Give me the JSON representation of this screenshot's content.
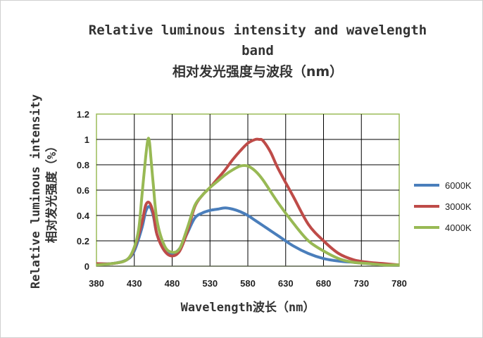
{
  "chart_data": {
    "type": "line",
    "title": "Relative luminous intensity and wavelength band",
    "title_line1": "Relative luminous intensity and wavelength",
    "title_line2": "band",
    "subtitle": "相对发光强度与波段（nm）",
    "xlabel": "Wavelength波长（nm）",
    "ylabel": "Relative luminous intensity",
    "ylabel_cn": "相对发光强度（%）",
    "xlim": [
      380,
      780
    ],
    "ylim": [
      0,
      1.2
    ],
    "x_ticks": [
      "380",
      "430",
      "480",
      "530",
      "580",
      "630",
      "680",
      "730",
      "780"
    ],
    "y_ticks": [
      "0",
      "0.2",
      "0.4",
      "0.6",
      "0.8",
      "1",
      "1.2"
    ],
    "grid": true,
    "legend_position": "right",
    "series": [
      {
        "name": "6000K",
        "color": "#4a7ebb",
        "x": [
          380,
          400,
          420,
          430,
          440,
          445,
          450,
          455,
          460,
          470,
          480,
          490,
          500,
          510,
          520,
          530,
          540,
          550,
          560,
          570,
          580,
          590,
          600,
          620,
          640,
          660,
          680,
          700,
          720,
          740,
          760,
          780
        ],
        "y": [
          0.02,
          0.02,
          0.05,
          0.12,
          0.3,
          0.43,
          0.47,
          0.4,
          0.25,
          0.12,
          0.1,
          0.14,
          0.26,
          0.38,
          0.42,
          0.44,
          0.45,
          0.46,
          0.45,
          0.43,
          0.4,
          0.36,
          0.32,
          0.24,
          0.16,
          0.1,
          0.06,
          0.04,
          0.03,
          0.02,
          0.01,
          0.01
        ]
      },
      {
        "name": "3000K",
        "color": "#be4b48",
        "x": [
          380,
          400,
          420,
          430,
          440,
          445,
          450,
          455,
          460,
          470,
          480,
          490,
          500,
          510,
          520,
          530,
          540,
          550,
          560,
          570,
          580,
          590,
          595,
          600,
          610,
          620,
          640,
          660,
          680,
          700,
          720,
          740,
          760,
          780
        ],
        "y": [
          0.02,
          0.02,
          0.05,
          0.14,
          0.34,
          0.48,
          0.5,
          0.42,
          0.25,
          0.12,
          0.08,
          0.12,
          0.27,
          0.47,
          0.56,
          0.62,
          0.69,
          0.76,
          0.84,
          0.91,
          0.97,
          1.0,
          1.0,
          0.99,
          0.9,
          0.77,
          0.55,
          0.33,
          0.2,
          0.1,
          0.05,
          0.03,
          0.02,
          0.01
        ]
      },
      {
        "name": "4000K",
        "color": "#98b954",
        "x": [
          380,
          400,
          420,
          430,
          436,
          440,
          445,
          448,
          450,
          452,
          455,
          460,
          470,
          480,
          490,
          500,
          510,
          520,
          530,
          540,
          550,
          560,
          570,
          580,
          590,
          600,
          620,
          640,
          660,
          680,
          700,
          720,
          740,
          760,
          780
        ],
        "y": [
          0.01,
          0.02,
          0.05,
          0.15,
          0.3,
          0.55,
          0.86,
          1.0,
          0.98,
          0.85,
          0.65,
          0.36,
          0.16,
          0.11,
          0.14,
          0.3,
          0.48,
          0.56,
          0.62,
          0.67,
          0.72,
          0.76,
          0.79,
          0.79,
          0.75,
          0.68,
          0.5,
          0.34,
          0.2,
          0.12,
          0.06,
          0.03,
          0.02,
          0.01,
          0.01
        ]
      }
    ]
  }
}
